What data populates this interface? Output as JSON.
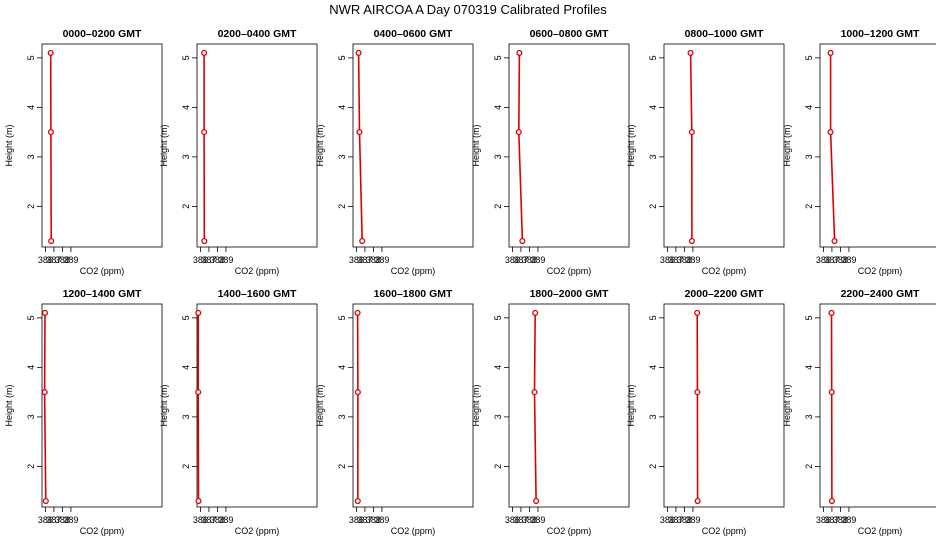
{
  "figure": {
    "title": "NWR AIRCOA A  Day 070319  Calibrated Profiles",
    "series_color": "#dd0000"
  },
  "chart_data": [
    {
      "type": "line",
      "title": "0000–0200 GMT",
      "xlabel": "CO2 (ppm)",
      "ylabel": "Height (m)",
      "xlim": [
        385.6,
        399.7
      ],
      "ylim": [
        1.18,
        5.28
      ],
      "x_ticks": [
        386,
        387,
        388,
        389
      ],
      "y_ticks": [
        2,
        3,
        4,
        5
      ],
      "tick_labels_x": [
        "386",
        "387",
        "388",
        "389"
      ],
      "tick_labels_y": [
        "2",
        "3",
        "4",
        "5"
      ],
      "series": [
        {
          "x": [
            386.62,
            386.65,
            386.68
          ],
          "y": [
            5.1,
            3.5,
            1.3
          ]
        }
      ]
    },
    {
      "type": "line",
      "title": "0200–0400 GMT",
      "xlabel": "CO2 (ppm)",
      "ylabel": "Height (m)",
      "xlim": [
        385.6,
        399.7
      ],
      "ylim": [
        1.18,
        5.28
      ],
      "x_ticks": [
        386,
        387,
        388,
        389
      ],
      "y_ticks": [
        2,
        3,
        4,
        5
      ],
      "tick_labels_x": [
        "386",
        "387",
        "388",
        "389"
      ],
      "tick_labels_y": [
        "2",
        "3",
        "4",
        "5"
      ],
      "series": [
        {
          "x": [
            386.44,
            386.44,
            386.46
          ],
          "y": [
            5.1,
            3.5,
            1.3
          ]
        }
      ]
    },
    {
      "type": "line",
      "title": "0400–0600 GMT",
      "xlabel": "CO2 (ppm)",
      "ylabel": "Height (m)",
      "xlim": [
        385.6,
        399.7
      ],
      "ylim": [
        1.18,
        5.28
      ],
      "x_ticks": [
        386,
        387,
        388,
        389
      ],
      "y_ticks": [
        2,
        3,
        4,
        5
      ],
      "tick_labels_x": [
        "386",
        "387",
        "388",
        "389"
      ],
      "tick_labels_y": [
        "2",
        "3",
        "4",
        "5"
      ],
      "series": [
        {
          "x": [
            386.26,
            386.36,
            386.68
          ],
          "y": [
            5.1,
            3.5,
            1.3
          ]
        }
      ]
    },
    {
      "type": "line",
      "title": "0600–0800 GMT",
      "xlabel": "CO2 (ppm)",
      "ylabel": "Height (m)",
      "xlim": [
        385.6,
        399.7
      ],
      "ylim": [
        1.18,
        5.28
      ],
      "x_ticks": [
        386,
        387,
        388,
        389
      ],
      "y_ticks": [
        2,
        3,
        4,
        5
      ],
      "tick_labels_x": [
        "386",
        "387",
        "388",
        "389"
      ],
      "tick_labels_y": [
        "2",
        "3",
        "4",
        "5"
      ],
      "series": [
        {
          "x": [
            386.82,
            386.75,
            387.17
          ],
          "y": [
            5.1,
            3.5,
            1.3
          ]
        }
      ]
    },
    {
      "type": "line",
      "title": "0800–1000 GMT",
      "xlabel": "CO2 (ppm)",
      "ylabel": "Height (m)",
      "xlim": [
        385.6,
        399.7
      ],
      "ylim": [
        1.18,
        5.28
      ],
      "x_ticks": [
        386,
        387,
        388,
        389
      ],
      "y_ticks": [
        2,
        3,
        4,
        5
      ],
      "tick_labels_x": [
        "386",
        "387",
        "388",
        "389"
      ],
      "tick_labels_y": [
        "2",
        "3",
        "4",
        "5"
      ],
      "series": [
        {
          "x": [
            388.72,
            388.87,
            388.88
          ],
          "y": [
            5.1,
            3.5,
            1.3
          ]
        }
      ]
    },
    {
      "type": "line",
      "title": "1000–1200 GMT",
      "xlabel": "CO2 (ppm)",
      "ylabel": "Height (m)",
      "xlim": [
        385.6,
        399.7
      ],
      "ylim": [
        1.18,
        5.28
      ],
      "x_ticks": [
        386,
        387,
        388,
        389
      ],
      "y_ticks": [
        2,
        3,
        4,
        5
      ],
      "tick_labels_x": [
        "386",
        "387",
        "388",
        "389"
      ],
      "tick_labels_y": [
        "2",
        "3",
        "4",
        "5"
      ],
      "series": [
        {
          "x": [
            386.84,
            386.84,
            387.31
          ],
          "y": [
            5.1,
            3.5,
            1.3
          ]
        }
      ]
    },
    {
      "type": "line",
      "title": "1200–1400 GMT",
      "xlabel": "CO2 (ppm)",
      "ylabel": "Height (m)",
      "xlim": [
        385.6,
        399.7
      ],
      "ylim": [
        1.18,
        5.28
      ],
      "x_ticks": [
        386,
        387,
        388,
        389
      ],
      "y_ticks": [
        2,
        3,
        4,
        5
      ],
      "tick_labels_x": [
        "386",
        "387",
        "388",
        "389"
      ],
      "tick_labels_y": [
        "2",
        "3",
        "4",
        "5"
      ],
      "series": [
        {
          "x": [
            385.95,
            385.91,
            386.05
          ],
          "y": [
            5.1,
            3.5,
            1.3
          ]
        }
      ]
    },
    {
      "type": "line",
      "title": "1400–1600 GMT",
      "xlabel": "CO2 (ppm)",
      "ylabel": "Height (m)",
      "xlim": [
        385.6,
        399.7
      ],
      "ylim": [
        1.18,
        5.28
      ],
      "x_ticks": [
        386,
        387,
        388,
        389
      ],
      "y_ticks": [
        2,
        3,
        4,
        5
      ],
      "tick_labels_x": [
        "386",
        "387",
        "388",
        "389"
      ],
      "tick_labels_y": [
        "2",
        "3",
        "4",
        "5"
      ],
      "series": [
        {
          "x": [
            385.75,
            385.74,
            385.78
          ],
          "y": [
            5.1,
            3.5,
            1.3
          ]
        }
      ]
    },
    {
      "type": "line",
      "title": "1600–1800 GMT",
      "xlabel": "CO2 (ppm)",
      "ylabel": "Height (m)",
      "xlim": [
        385.6,
        399.7
      ],
      "ylim": [
        1.18,
        5.28
      ],
      "x_ticks": [
        386,
        387,
        388,
        389
      ],
      "y_ticks": [
        2,
        3,
        4,
        5
      ],
      "tick_labels_x": [
        "386",
        "387",
        "388",
        "389"
      ],
      "tick_labels_y": [
        "2",
        "3",
        "4",
        "5"
      ],
      "series": [
        {
          "x": [
            386.14,
            386.17,
            386.16
          ],
          "y": [
            5.1,
            3.5,
            1.3
          ]
        }
      ]
    },
    {
      "type": "line",
      "title": "1800–2000 GMT",
      "xlabel": "CO2 (ppm)",
      "ylabel": "Height (m)",
      "xlim": [
        385.6,
        399.7
      ],
      "ylim": [
        1.18,
        5.28
      ],
      "x_ticks": [
        386,
        387,
        388,
        389
      ],
      "y_ticks": [
        2,
        3,
        4,
        5
      ],
      "tick_labels_x": [
        "386",
        "387",
        "388",
        "389"
      ],
      "tick_labels_y": [
        "2",
        "3",
        "4",
        "5"
      ],
      "series": [
        {
          "x": [
            388.68,
            388.6,
            388.79
          ],
          "y": [
            5.1,
            3.5,
            1.3
          ]
        }
      ]
    },
    {
      "type": "line",
      "title": "2000–2200 GMT",
      "xlabel": "CO2 (ppm)",
      "ylabel": "Height (m)",
      "xlim": [
        385.6,
        399.7
      ],
      "ylim": [
        1.18,
        5.28
      ],
      "x_ticks": [
        386,
        387,
        388,
        389
      ],
      "y_ticks": [
        2,
        3,
        4,
        5
      ],
      "tick_labels_x": [
        "386",
        "387",
        "388",
        "389"
      ],
      "tick_labels_y": [
        "2",
        "3",
        "4",
        "5"
      ],
      "series": [
        {
          "x": [
            389.5,
            389.52,
            389.55
          ],
          "y": [
            5.1,
            3.5,
            1.3
          ]
        }
      ]
    },
    {
      "type": "line",
      "title": "2200–2400 GMT",
      "xlabel": "CO2 (ppm)",
      "ylabel": "Height (m)",
      "xlim": [
        385.6,
        399.7
      ],
      "ylim": [
        1.18,
        5.28
      ],
      "x_ticks": [
        386,
        387,
        388,
        389
      ],
      "y_ticks": [
        2,
        3,
        4,
        5
      ],
      "tick_labels_x": [
        "386",
        "387",
        "388",
        "389"
      ],
      "tick_labels_y": [
        "2",
        "3",
        "4",
        "5"
      ],
      "series": [
        {
          "x": [
            386.95,
            386.98,
            387.0
          ],
          "y": [
            5.1,
            3.5,
            1.3
          ]
        }
      ]
    }
  ]
}
